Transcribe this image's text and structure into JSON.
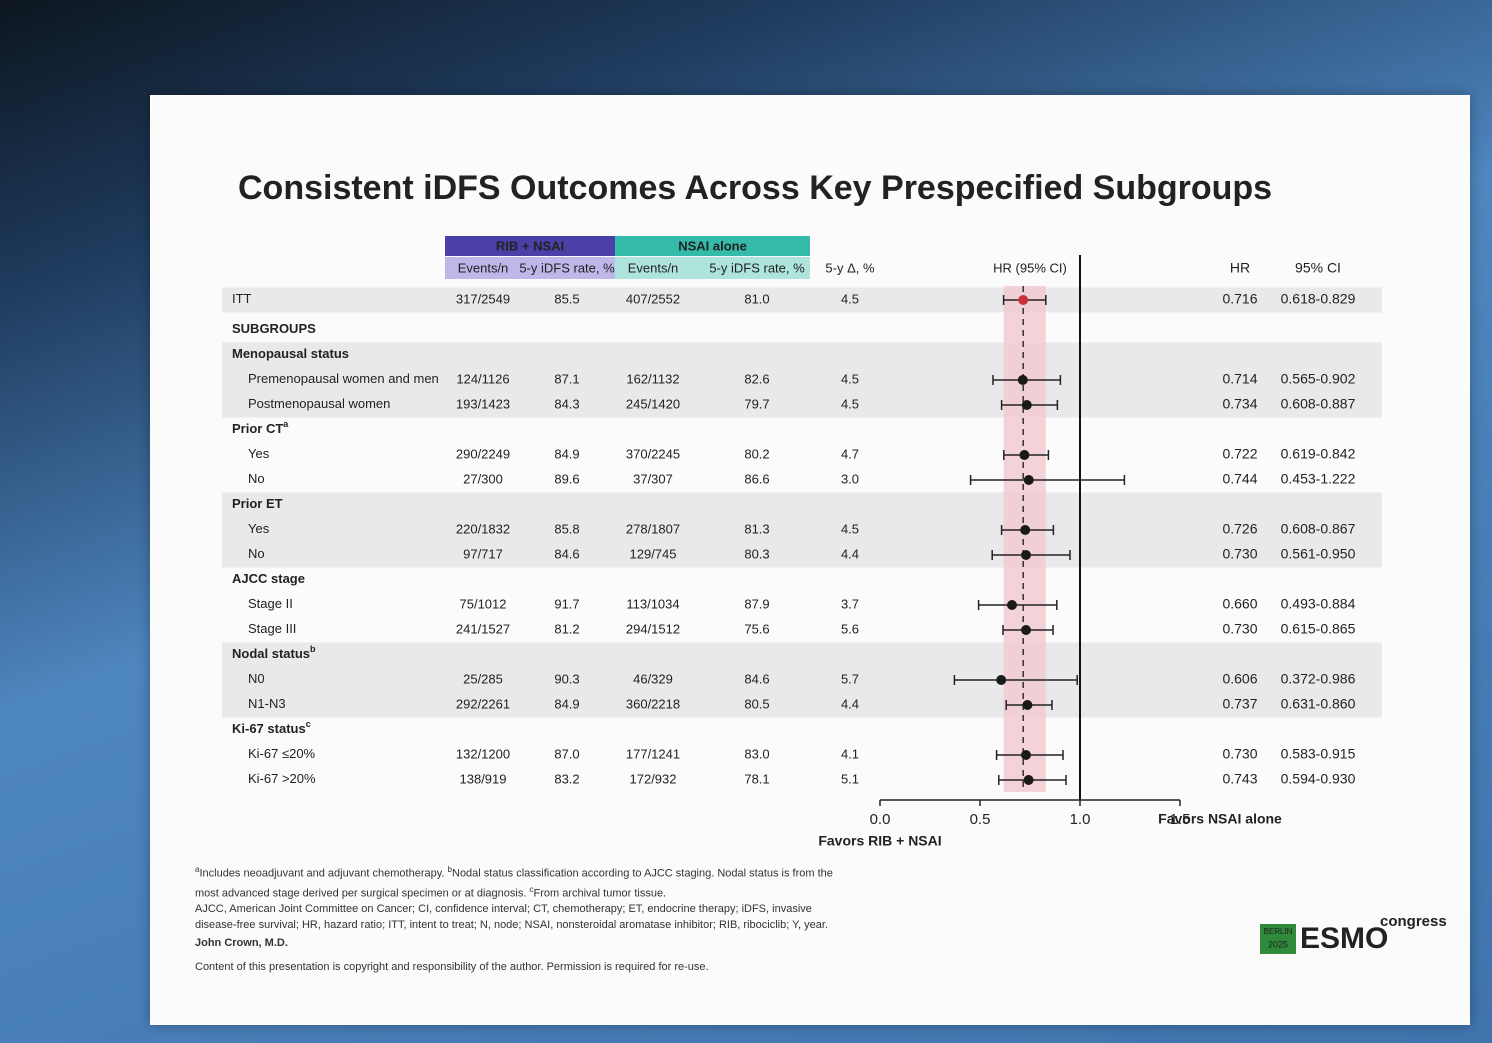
{
  "chart_data": {
    "type": "forest",
    "title": "Consistent iDFS Outcomes Across Key Prespecified Subgroups",
    "groups": [
      {
        "name": "RIB + NSAI",
        "color": "#4b3fa8"
      },
      {
        "name": "NSAI alone",
        "color": "#35bba9"
      }
    ],
    "column_labels": {
      "events": "Events/n",
      "rate": "5-y iDFS rate, %",
      "delta": "5-y Δ, %",
      "plot": "HR (95% CI)",
      "hr": "HR",
      "ci": "95% CI"
    },
    "rows": [
      {
        "label": "ITT",
        "color": "#c8323c",
        "rib_events": "317/2549",
        "rib_rate": "85.5",
        "nsai_events": "407/2552",
        "nsai_rate": "81.0",
        "delta": "4.5",
        "hr": 0.716,
        "hr_label": "0.716",
        "ci_low": 0.618,
        "ci_high": 0.829,
        "ci_label": "0.618-0.829"
      },
      {
        "label": "SUBGROUPS"
      },
      {
        "label": "Menopausal status"
      },
      {
        "label": "Premenopausal women and men",
        "rib_events": "124/1126",
        "rib_rate": "87.1",
        "nsai_events": "162/1132",
        "nsai_rate": "82.6",
        "delta": "4.5",
        "hr": 0.714,
        "hr_label": "0.714",
        "ci_low": 0.565,
        "ci_high": 0.902,
        "ci_label": "0.565-0.902"
      },
      {
        "label": "Postmenopausal women",
        "rib_events": "193/1423",
        "rib_rate": "84.3",
        "nsai_events": "245/1420",
        "nsai_rate": "79.7",
        "delta": "4.5",
        "hr": 0.734,
        "hr_label": "0.734",
        "ci_low": 0.608,
        "ci_high": 0.887,
        "ci_label": "0.608-0.887"
      },
      {
        "label": "Prior CT",
        "sup": "a"
      },
      {
        "label": "Yes",
        "rib_events": "290/2249",
        "rib_rate": "84.9",
        "nsai_events": "370/2245",
        "nsai_rate": "80.2",
        "delta": "4.7",
        "hr": 0.722,
        "hr_label": "0.722",
        "ci_low": 0.619,
        "ci_high": 0.842,
        "ci_label": "0.619-0.842"
      },
      {
        "label": "No",
        "rib_events": "27/300",
        "rib_rate": "89.6",
        "nsai_events": "37/307",
        "nsai_rate": "86.6",
        "delta": "3.0",
        "hr": 0.744,
        "hr_label": "0.744",
        "ci_low": 0.453,
        "ci_high": 1.222,
        "ci_label": "0.453-1.222"
      },
      {
        "label": "Prior ET"
      },
      {
        "label": "Yes",
        "rib_events": "220/1832",
        "rib_rate": "85.8",
        "nsai_events": "278/1807",
        "nsai_rate": "81.3",
        "delta": "4.5",
        "hr": 0.726,
        "hr_label": "0.726",
        "ci_low": 0.608,
        "ci_high": 0.867,
        "ci_label": "0.608-0.867"
      },
      {
        "label": "No",
        "rib_events": "97/717",
        "rib_rate": "84.6",
        "nsai_events": "129/745",
        "nsai_rate": "80.3",
        "delta": "4.4",
        "hr": 0.73,
        "hr_label": "0.730",
        "ci_low": 0.561,
        "ci_high": 0.95,
        "ci_label": "0.561-0.950"
      },
      {
        "label": "AJCC stage"
      },
      {
        "label": "Stage II",
        "rib_events": "75/1012",
        "rib_rate": "91.7",
        "nsai_events": "113/1034",
        "nsai_rate": "87.9",
        "delta": "3.7",
        "hr": 0.66,
        "hr_label": "0.660",
        "ci_low": 0.493,
        "ci_high": 0.884,
        "ci_label": "0.493-0.884"
      },
      {
        "label": "Stage III",
        "rib_events": "241/1527",
        "rib_rate": "81.2",
        "nsai_events": "294/1512",
        "nsai_rate": "75.6",
        "delta": "5.6",
        "hr": 0.73,
        "hr_label": "0.730",
        "ci_low": 0.615,
        "ci_high": 0.865,
        "ci_label": "0.615-0.865"
      },
      {
        "label": "Nodal status",
        "sup": "b"
      },
      {
        "label": "N0",
        "rib_events": "25/285",
        "rib_rate": "90.3",
        "nsai_events": "46/329",
        "nsai_rate": "84.6",
        "delta": "5.7",
        "hr": 0.606,
        "hr_label": "0.606",
        "ci_low": 0.372,
        "ci_high": 0.986,
        "ci_label": "0.372-0.986"
      },
      {
        "label": "N1-N3",
        "rib_events": "292/2261",
        "rib_rate": "84.9",
        "nsai_events": "360/2218",
        "nsai_rate": "80.5",
        "delta": "4.4",
        "hr": 0.737,
        "hr_label": "0.737",
        "ci_low": 0.631,
        "ci_high": 0.86,
        "ci_label": "0.631-0.860"
      },
      {
        "label": "Ki-67 status",
        "sup": "c"
      },
      {
        "label": "Ki-67 ≤20%",
        "rib_events": "132/1200",
        "rib_rate": "87.0",
        "nsai_events": "177/1241",
        "nsai_rate": "83.0",
        "delta": "4.1",
        "hr": 0.73,
        "hr_label": "0.730",
        "ci_low": 0.583,
        "ci_high": 0.915,
        "ci_label": "0.583-0.915"
      },
      {
        "label": "Ki-67 >20%",
        "rib_events": "138/919",
        "rib_rate": "83.2",
        "nsai_events": "172/932",
        "nsai_rate": "78.1",
        "delta": "5.1",
        "hr": 0.743,
        "hr_label": "0.743",
        "ci_low": 0.594,
        "ci_high": 0.93,
        "ci_label": "0.594-0.930"
      }
    ],
    "xlim": [
      0,
      1.5
    ],
    "xticks": [
      {
        "value": 0,
        "label": "0.0"
      },
      0.5,
      {
        "value": 1,
        "label": "1.0"
      },
      1.5
    ],
    "reference_line": 1,
    "favors_left": "Favors RIB + NSAI",
    "favors_right": "Favors NSAI alone",
    "marker_color": "#1a1a1a",
    "band_color": "#f2c9cf",
    "footnotes": [
      {
        "sup": "a",
        "text": "Includes neoadjuvant and adjuvant chemotherapy."
      },
      {
        "sup": "b",
        "text": "Nodal status classification according to AJCC staging. Nodal status is from the most advanced stage derived per surgical specimen or at diagnosis."
      },
      {
        "sup": "c",
        "text": "From archival tumor tissue."
      }
    ],
    "abbreviations": "AJCC, American Joint Committee on Cancer; CI, confidence interval; CT, chemotherapy; ET, endocrine therapy; iDFS, invasive disease-free survival; HR, hazard ratio; ITT, intent to treat; N, node; NSAI, nonsteroidal aromatase inhibitor; RIB, ribociclib; Y, year.",
    "presenter": "John Crown, M.D.",
    "copyright": "Content of this presentation is copyright and responsibility of the author. Permission is required for re-use.",
    "logo": {
      "city": "BERLIN",
      "year": "2025",
      "name": "ESMO",
      "word": "congress"
    }
  }
}
